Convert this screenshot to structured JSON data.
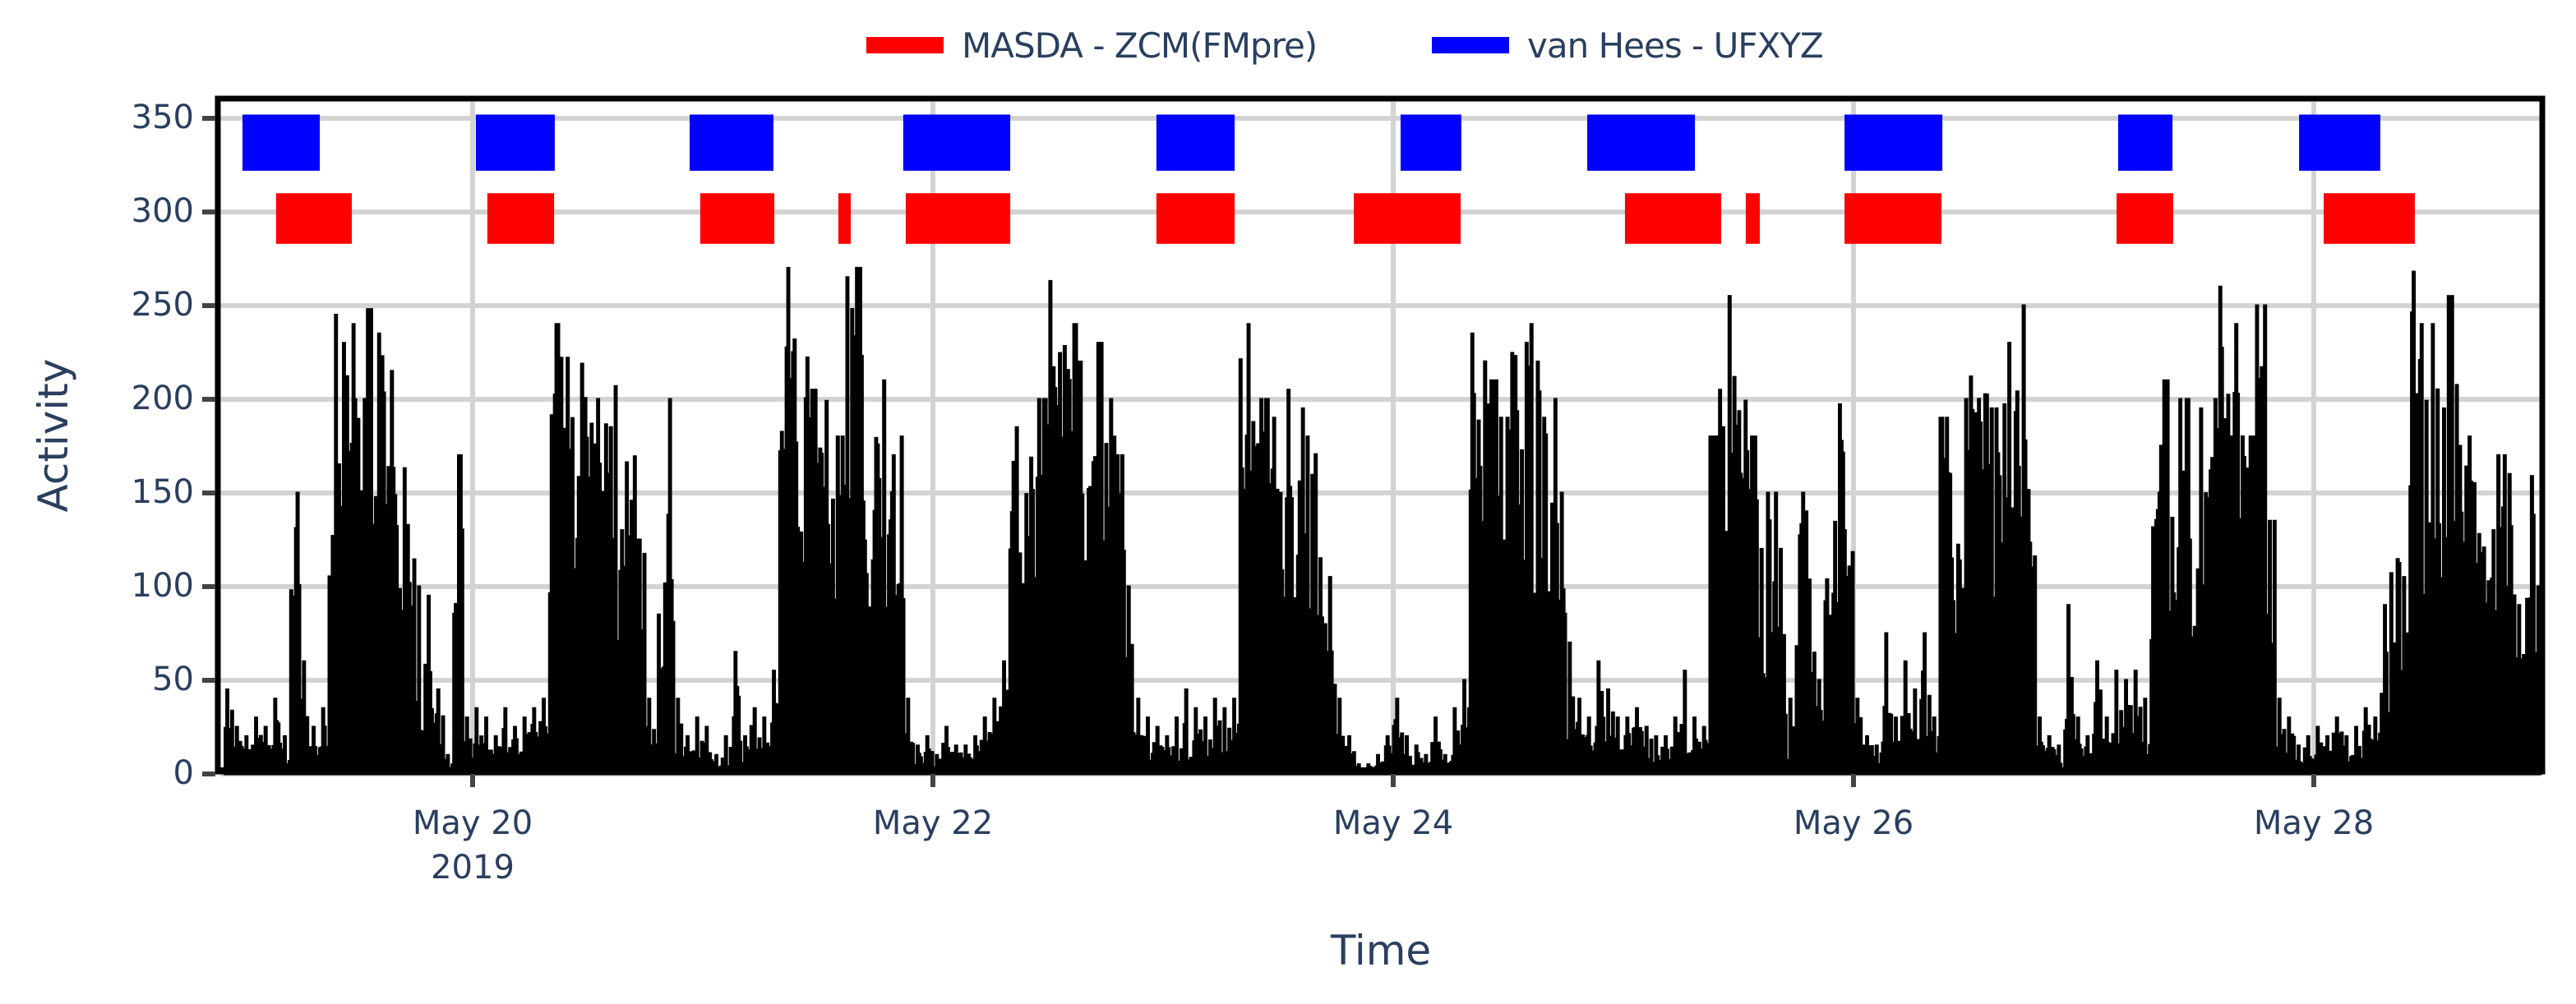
{
  "legend": {
    "items": [
      {
        "label": "MASDA - ZCM(FMpre)",
        "color": "#ff0000"
      },
      {
        "label": "van Hees - UFXYZ",
        "color": "#0000ff"
      }
    ]
  },
  "axes": {
    "x_title": "Time",
    "y_title": "Activity",
    "x_ticks": [
      {
        "label": "May 20",
        "sub": "2019",
        "day": 0
      },
      {
        "label": "May 22",
        "sub": "",
        "day": 2
      },
      {
        "label": "May 24",
        "sub": "",
        "day": 4
      },
      {
        "label": "May 26",
        "sub": "",
        "day": 6
      },
      {
        "label": "May 28",
        "sub": "",
        "day": 8
      }
    ],
    "y_ticks": [
      "0",
      "50",
      "100",
      "150",
      "200",
      "250",
      "300",
      "350"
    ]
  },
  "chart_data": {
    "type": "bar",
    "title": "",
    "xlabel": "Time",
    "ylabel": "Activity",
    "ylim": [
      0,
      355
    ],
    "xlim": [
      "2019-05-18 21:00",
      "2019-05-29 00:00"
    ],
    "grid": true,
    "legend_position": "top-center",
    "colors": {
      "activity": "#000000",
      "masda": "#ff0000",
      "vanhees": "#0000ff",
      "grid": "#d3d3d3",
      "text": "#2a3f5f"
    },
    "activity": {
      "name": "Activity",
      "start": "2019-05-18 21:00",
      "step": "1h",
      "hourly_peak": [
        15,
        45,
        25,
        20,
        30,
        25,
        40,
        20,
        150,
        60,
        25,
        35,
        245,
        230,
        240,
        200,
        248,
        235,
        215,
        175,
        160,
        100,
        95,
        45,
        10,
        170,
        30,
        35,
        30,
        20,
        35,
        25,
        30,
        35,
        40,
        240,
        222,
        225,
        245,
        258,
        200,
        240,
        130,
        225,
        125,
        40,
        85,
        200,
        40,
        20,
        30,
        25,
        10,
        20,
        65,
        20,
        35,
        30,
        55,
        270,
        250,
        250,
        205,
        215,
        160,
        180,
        265,
        270,
        165,
        210,
        170,
        180,
        40,
        15,
        20,
        10,
        25,
        15,
        15,
        20,
        30,
        40,
        60,
        185,
        165,
        185,
        200,
        263,
        245,
        240,
        220,
        260,
        230,
        200,
        170,
        100,
        40,
        30,
        25,
        20,
        30,
        45,
        35,
        30,
        40,
        35,
        40,
        240,
        235,
        200,
        190,
        180,
        205,
        195,
        180,
        115,
        105,
        40,
        20,
        5,
        5,
        10,
        20,
        40,
        20,
        15,
        10,
        30,
        10,
        35,
        50,
        235,
        240,
        210,
        190,
        250,
        230,
        240,
        220,
        200,
        150,
        70,
        40,
        30,
        60,
        45,
        30,
        30,
        35,
        25,
        20,
        20,
        30,
        55,
        30,
        25,
        180,
        205,
        255,
        220,
        180,
        120,
        150,
        120,
        40,
        150,
        140,
        50,
        150,
        210,
        130,
        40,
        20,
        15,
        75,
        30,
        60,
        45,
        75,
        30,
        190,
        160,
        200,
        250,
        248,
        195,
        215,
        230,
        250,
        160,
        30,
        20,
        15,
        90,
        30,
        20,
        60,
        30,
        55,
        50,
        55,
        40,
        150,
        210,
        160,
        200,
        125,
        195,
        200,
        260,
        240,
        220,
        180,
        250,
        135,
        40,
        30,
        15,
        20,
        25,
        20,
        30,
        20,
        25,
        35,
        30,
        90,
        130,
        105,
        268,
        255,
        240,
        195,
        255,
        175,
        180,
        140,
        130,
        170,
        160,
        90,
        170,
        100
      ]
    },
    "series": [
      {
        "name": "van Hees - UFXYZ",
        "color": "#0000ff",
        "y_range": [
          322,
          352
        ],
        "intervals": [
          [
            "2019-05-19 00:00",
            "2019-05-19 08:04"
          ],
          [
            "2019-05-20 00:20",
            "2019-05-20 08:34"
          ],
          [
            "2019-05-20 22:38",
            "2019-05-21 07:22"
          ],
          [
            "2019-05-21 20:55",
            "2019-05-22 08:04"
          ],
          [
            "2019-05-22 23:18",
            "2019-05-23 07:28"
          ],
          [
            "2019-05-24 00:46",
            "2019-05-24 07:07"
          ],
          [
            "2019-05-24 20:14",
            "2019-05-25 07:28"
          ],
          [
            "2019-05-25 23:04",
            "2019-05-26 09:15"
          ],
          [
            "2019-05-27 03:36",
            "2019-05-27 09:15"
          ],
          [
            "2019-05-27 22:28",
            "2019-05-28 06:56"
          ]
        ],
        "intervals_days": [
          [
            -1.0,
            -0.664
          ],
          [
            0.014,
            0.357
          ],
          [
            0.943,
            1.307
          ],
          [
            1.871,
            2.336
          ],
          [
            2.971,
            3.311
          ],
          [
            4.032,
            4.296
          ],
          [
            4.843,
            5.311
          ],
          [
            5.961,
            6.386
          ],
          [
            7.15,
            7.386
          ],
          [
            7.936,
            8.289
          ]
        ]
      },
      {
        "name": "MASDA - ZCM(FMpre)",
        "color": "#ff0000",
        "y_range": [
          283,
          310
        ],
        "intervals": [
          [
            "2019-05-19 03:30",
            "2019-05-19 11:24"
          ],
          [
            "2019-05-20 01:33",
            "2019-05-20 08:30"
          ],
          [
            "2019-05-20 23:44",
            "2019-05-21 07:28"
          ],
          [
            "2019-05-21 14:08",
            "2019-05-21 15:26"
          ],
          [
            "2019-05-21 21:10",
            "2019-05-22 08:04"
          ],
          [
            "2019-05-22 23:18",
            "2019-05-23 07:28"
          ],
          [
            "2019-05-23 19:54",
            "2019-05-24 07:02"
          ],
          [
            "2019-05-25 00:10",
            "2019-05-25 10:12"
          ],
          [
            "2019-05-25 12:46",
            "2019-05-25 14:14"
          ],
          [
            "2019-05-25 23:04",
            "2019-05-26 09:10"
          ],
          [
            "2019-05-27 03:26",
            "2019-05-27 09:20"
          ],
          [
            "2019-05-28 01:02",
            "2019-05-28 10:32"
          ]
        ],
        "intervals_days": [
          [
            -0.854,
            -0.525
          ],
          [
            0.064,
            0.354
          ],
          [
            0.989,
            1.311
          ],
          [
            1.589,
            1.643
          ],
          [
            1.882,
            2.336
          ],
          [
            2.971,
            3.311
          ],
          [
            3.829,
            4.293
          ],
          [
            5.007,
            5.425
          ],
          [
            5.532,
            5.593
          ],
          [
            5.961,
            6.382
          ],
          [
            7.143,
            7.389
          ],
          [
            8.043,
            8.439
          ]
        ]
      }
    ]
  }
}
